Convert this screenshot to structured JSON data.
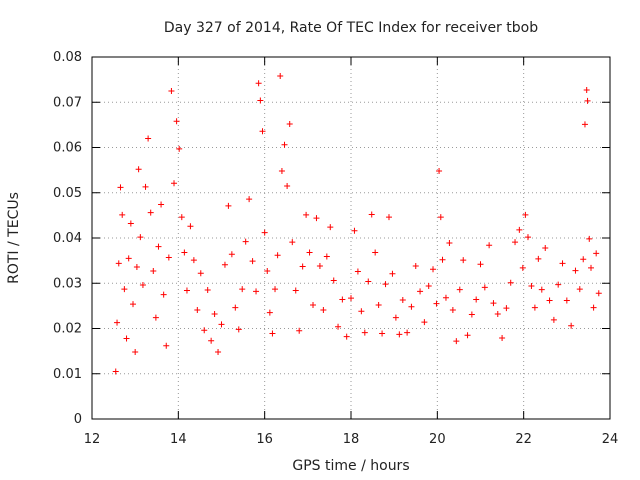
{
  "chart_data": {
    "type": "scatter",
    "title": "Day 327 of 2014, Rate Of TEC Index for receiver tbob",
    "xlabel": "GPS time / hours",
    "ylabel": "ROTI / TECUs",
    "xlim": [
      12,
      24
    ],
    "ylim": [
      0,
      0.08
    ],
    "x_ticks": [
      12,
      14,
      16,
      18,
      20,
      22,
      24
    ],
    "y_ticks": [
      0,
      0.01,
      0.02,
      0.03,
      0.04,
      0.05,
      0.06,
      0.07,
      0.08
    ],
    "x_tick_labels": [
      "12",
      "14",
      "16",
      "18",
      "20",
      "22",
      "24"
    ],
    "y_tick_labels": [
      "0",
      "0.01",
      "0.02",
      "0.03",
      "0.04",
      "0.05",
      "0.06",
      "0.07",
      "0.08"
    ],
    "grid": true,
    "marker": "plus",
    "marker_color": "#ff0000",
    "series": [
      {
        "name": "ROTI",
        "points": [
          [
            12.55,
            0.0105
          ],
          [
            12.58,
            0.0213
          ],
          [
            12.62,
            0.0344
          ],
          [
            12.66,
            0.0512
          ],
          [
            12.7,
            0.0451
          ],
          [
            12.75,
            0.0287
          ],
          [
            12.8,
            0.0178
          ],
          [
            12.85,
            0.0355
          ],
          [
            12.9,
            0.0432
          ],
          [
            12.95,
            0.0254
          ],
          [
            13.0,
            0.0148
          ],
          [
            13.04,
            0.0336
          ],
          [
            13.08,
            0.0552
          ],
          [
            13.12,
            0.0402
          ],
          [
            13.18,
            0.0296
          ],
          [
            13.24,
            0.0513
          ],
          [
            13.3,
            0.062
          ],
          [
            13.36,
            0.0456
          ],
          [
            13.42,
            0.0327
          ],
          [
            13.48,
            0.0224
          ],
          [
            13.54,
            0.0381
          ],
          [
            13.6,
            0.0474
          ],
          [
            13.66,
            0.0275
          ],
          [
            13.72,
            0.0162
          ],
          [
            13.78,
            0.0357
          ],
          [
            13.84,
            0.0725
          ],
          [
            13.9,
            0.0521
          ],
          [
            13.96,
            0.0658
          ],
          [
            14.02,
            0.0597
          ],
          [
            14.08,
            0.0446
          ],
          [
            14.14,
            0.0368
          ],
          [
            14.2,
            0.0284
          ],
          [
            14.28,
            0.0426
          ],
          [
            14.36,
            0.0351
          ],
          [
            14.44,
            0.0241
          ],
          [
            14.52,
            0.0322
          ],
          [
            14.6,
            0.0196
          ],
          [
            14.68,
            0.0285
          ],
          [
            14.76,
            0.0173
          ],
          [
            14.84,
            0.0232
          ],
          [
            14.92,
            0.0148
          ],
          [
            15.0,
            0.0209
          ],
          [
            15.08,
            0.0341
          ],
          [
            15.16,
            0.0471
          ],
          [
            15.24,
            0.0364
          ],
          [
            15.32,
            0.0246
          ],
          [
            15.4,
            0.0198
          ],
          [
            15.48,
            0.0287
          ],
          [
            15.56,
            0.0392
          ],
          [
            15.64,
            0.0486
          ],
          [
            15.72,
            0.0349
          ],
          [
            15.8,
            0.0282
          ],
          [
            15.86,
            0.0742
          ],
          [
            15.9,
            0.0704
          ],
          [
            15.95,
            0.0636
          ],
          [
            16.0,
            0.0412
          ],
          [
            16.06,
            0.0327
          ],
          [
            16.12,
            0.0235
          ],
          [
            16.18,
            0.0189
          ],
          [
            16.24,
            0.0287
          ],
          [
            16.3,
            0.0362
          ],
          [
            16.36,
            0.0758
          ],
          [
            16.4,
            0.0548
          ],
          [
            16.46,
            0.0606
          ],
          [
            16.52,
            0.0515
          ],
          [
            16.58,
            0.0652
          ],
          [
            16.64,
            0.0391
          ],
          [
            16.72,
            0.0284
          ],
          [
            16.8,
            0.0195
          ],
          [
            16.88,
            0.0337
          ],
          [
            16.96,
            0.0451
          ],
          [
            17.04,
            0.0368
          ],
          [
            17.12,
            0.0252
          ],
          [
            17.2,
            0.0444
          ],
          [
            17.28,
            0.0338
          ],
          [
            17.36,
            0.0241
          ],
          [
            17.44,
            0.0359
          ],
          [
            17.52,
            0.0424
          ],
          [
            17.6,
            0.0306
          ],
          [
            17.7,
            0.0204
          ],
          [
            17.8,
            0.0264
          ],
          [
            17.9,
            0.0182
          ],
          [
            18.0,
            0.0267
          ],
          [
            18.08,
            0.0416
          ],
          [
            18.16,
            0.0326
          ],
          [
            18.24,
            0.0238
          ],
          [
            18.32,
            0.0191
          ],
          [
            18.4,
            0.0304
          ],
          [
            18.48,
            0.0452
          ],
          [
            18.56,
            0.0368
          ],
          [
            18.64,
            0.0252
          ],
          [
            18.72,
            0.0189
          ],
          [
            18.8,
            0.0298
          ],
          [
            18.88,
            0.0446
          ],
          [
            18.96,
            0.0321
          ],
          [
            19.04,
            0.0224
          ],
          [
            19.12,
            0.0187
          ],
          [
            19.2,
            0.0263
          ],
          [
            19.3,
            0.0191
          ],
          [
            19.4,
            0.0248
          ],
          [
            19.5,
            0.0338
          ],
          [
            19.6,
            0.0282
          ],
          [
            19.7,
            0.0214
          ],
          [
            19.8,
            0.0294
          ],
          [
            19.9,
            0.0331
          ],
          [
            19.98,
            0.0255
          ],
          [
            20.04,
            0.0548
          ],
          [
            20.08,
            0.0446
          ],
          [
            20.12,
            0.0352
          ],
          [
            20.2,
            0.0268
          ],
          [
            20.28,
            0.0389
          ],
          [
            20.36,
            0.0241
          ],
          [
            20.44,
            0.0172
          ],
          [
            20.52,
            0.0286
          ],
          [
            20.6,
            0.0351
          ],
          [
            20.7,
            0.0185
          ],
          [
            20.8,
            0.0231
          ],
          [
            20.9,
            0.0264
          ],
          [
            21.0,
            0.0342
          ],
          [
            21.1,
            0.0291
          ],
          [
            21.2,
            0.0384
          ],
          [
            21.3,
            0.0256
          ],
          [
            21.4,
            0.0232
          ],
          [
            21.5,
            0.0179
          ],
          [
            21.6,
            0.0245
          ],
          [
            21.7,
            0.0301
          ],
          [
            21.8,
            0.0391
          ],
          [
            21.9,
            0.0418
          ],
          [
            21.98,
            0.0334
          ],
          [
            22.04,
            0.0451
          ],
          [
            22.1,
            0.0402
          ],
          [
            22.18,
            0.0294
          ],
          [
            22.26,
            0.0246
          ],
          [
            22.34,
            0.0354
          ],
          [
            22.42,
            0.0286
          ],
          [
            22.5,
            0.0378
          ],
          [
            22.6,
            0.0262
          ],
          [
            22.7,
            0.0219
          ],
          [
            22.8,
            0.0297
          ],
          [
            22.9,
            0.0344
          ],
          [
            23.0,
            0.0262
          ],
          [
            23.1,
            0.0206
          ],
          [
            23.2,
            0.0328
          ],
          [
            23.3,
            0.0287
          ],
          [
            23.38,
            0.0353
          ],
          [
            23.42,
            0.0651
          ],
          [
            23.46,
            0.0727
          ],
          [
            23.48,
            0.0703
          ],
          [
            23.52,
            0.0398
          ],
          [
            23.56,
            0.0334
          ],
          [
            23.62,
            0.0246
          ],
          [
            23.68,
            0.0366
          ],
          [
            23.74,
            0.0278
          ]
        ]
      }
    ]
  }
}
